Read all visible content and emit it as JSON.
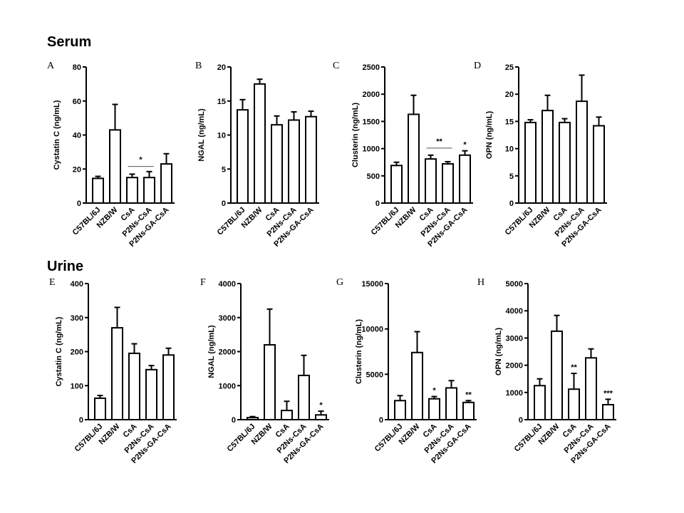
{
  "sections": [
    {
      "id": "serum",
      "title": "Serum"
    },
    {
      "id": "urine",
      "title": "Urine"
    }
  ],
  "chart_data": [
    {
      "panel": "A",
      "section": "serum",
      "type": "bar",
      "ylabel": "Cystatin C (ng/mL)",
      "categories": [
        "C57BL/6J",
        "NZB/W",
        "CsA",
        "P2Ns-CsA",
        "P2Ns-GA-CsA"
      ],
      "values": [
        14.5,
        43,
        15,
        15,
        23
      ],
      "errors": [
        1.2,
        15,
        2,
        3.5,
        6
      ],
      "ylim": [
        0,
        80
      ],
      "yticks": [
        0,
        20,
        40,
        60,
        80
      ],
      "bracket": {
        "from": 2,
        "to": 3,
        "value": 21.5,
        "label": "*"
      },
      "significance": []
    },
    {
      "panel": "B",
      "section": "serum",
      "type": "bar",
      "ylabel": "NGAL (ng/mL)",
      "categories": [
        "C57BL/6J",
        "NZB/W",
        "CsA",
        "P2Ns-CsA",
        "P2Ns-GA-CsA"
      ],
      "values": [
        13.7,
        17.5,
        11.5,
        12.2,
        12.7
      ],
      "errors": [
        1.5,
        0.7,
        1.3,
        1.2,
        0.8
      ],
      "ylim": [
        0,
        20
      ],
      "yticks": [
        0,
        5,
        10,
        15,
        20
      ],
      "bracket": null,
      "significance": []
    },
    {
      "panel": "C",
      "section": "serum",
      "type": "bar",
      "ylabel": "Clusterin (ng/mL)",
      "categories": [
        "C57BL/6J",
        "NZB/W",
        "CsA",
        "P2Ns-CsA",
        "P2Ns-GA-CsA"
      ],
      "values": [
        690,
        1630,
        810,
        720,
        880
      ],
      "errors": [
        60,
        350,
        70,
        40,
        80
      ],
      "ylim": [
        0,
        2500
      ],
      "yticks": [
        0,
        500,
        1000,
        1500,
        2000,
        2500
      ],
      "bracket": {
        "from": 2,
        "to": 3,
        "value": 1010,
        "label": "**"
      },
      "significance": [
        {
          "index": 4,
          "label": "*"
        }
      ]
    },
    {
      "panel": "D",
      "section": "serum",
      "type": "bar",
      "ylabel": "OPN (ng/mL)",
      "categories": [
        "C57BL/6J",
        "NZB/W",
        "CsA",
        "P2Ns-CsA",
        "P2Ns-GA-CsA"
      ],
      "values": [
        14.8,
        17,
        14.8,
        18.7,
        14.2
      ],
      "errors": [
        0.5,
        2.8,
        0.7,
        4.8,
        1.6
      ],
      "ylim": [
        0,
        25
      ],
      "yticks": [
        0,
        5,
        10,
        15,
        20,
        25
      ],
      "bracket": null,
      "significance": []
    },
    {
      "panel": "E",
      "section": "urine",
      "type": "bar",
      "ylabel": "Cystatin C (ng/mL)",
      "categories": [
        "C57BL/6J",
        "NZB/W",
        "CsA",
        "P2Ns-CsA",
        "P2Ns-GA-CsA"
      ],
      "values": [
        63,
        270,
        195,
        147,
        190
      ],
      "errors": [
        8,
        60,
        28,
        12,
        20
      ],
      "ylim": [
        0,
        400
      ],
      "yticks": [
        0,
        100,
        200,
        300,
        400
      ],
      "bracket": null,
      "significance": []
    },
    {
      "panel": "F",
      "section": "urine",
      "type": "bar",
      "ylabel": "NGAL (ng/mL)",
      "categories": [
        "C57BL/6J",
        "NZB/W",
        "CsA",
        "P2Ns-CsA",
        "P2Ns-GA-CsA"
      ],
      "values": [
        60,
        2200,
        270,
        1300,
        140
      ],
      "errors": [
        30,
        1050,
        270,
        590,
        110
      ],
      "ylim": [
        0,
        4000
      ],
      "yticks": [
        0,
        1000,
        2000,
        3000,
        4000
      ],
      "bracket": null,
      "significance": [
        {
          "index": 4,
          "label": "*"
        }
      ]
    },
    {
      "panel": "G",
      "section": "urine",
      "type": "bar",
      "ylabel": "Clusterin (ng/mL)",
      "categories": [
        "C57BL/6J",
        "NZB/W",
        "CsA",
        "P2Ns-CsA",
        "P2Ns-GA-CsA"
      ],
      "values": [
        2100,
        7400,
        2300,
        3500,
        1900
      ],
      "errors": [
        550,
        2300,
        250,
        800,
        200
      ],
      "ylim": [
        0,
        15000
      ],
      "yticks": [
        0,
        5000,
        10000,
        15000
      ],
      "bracket": null,
      "significance": [
        {
          "index": 2,
          "label": "*"
        },
        {
          "index": 4,
          "label": "**"
        }
      ]
    },
    {
      "panel": "H",
      "section": "urine",
      "type": "bar",
      "ylabel": "OPN (ng/mL)",
      "categories": [
        "C57BL/6J",
        "NZB/W",
        "CsA",
        "P2Ns-CsA",
        "P2Ns-GA-CsA"
      ],
      "values": [
        1250,
        3250,
        1120,
        2270,
        550
      ],
      "errors": [
        250,
        580,
        580,
        330,
        200
      ],
      "ylim": [
        0,
        5000
      ],
      "yticks": [
        0,
        1000,
        2000,
        3000,
        4000,
        5000
      ],
      "bracket": null,
      "significance": [
        {
          "index": 2,
          "label": "**"
        },
        {
          "index": 4,
          "label": "***"
        }
      ]
    }
  ]
}
